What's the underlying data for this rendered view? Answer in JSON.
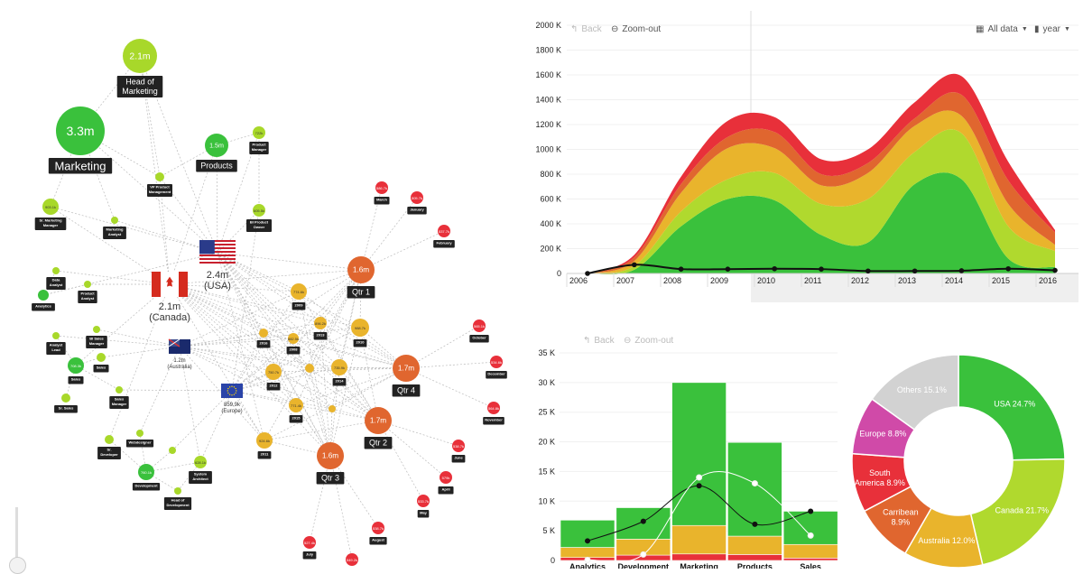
{
  "network": {
    "colors": {
      "green": "#3ac13c",
      "lime": "#a8d82a",
      "yellow": "#e9b42c",
      "orange": "#e0662f",
      "red": "#e8303a"
    },
    "nodes": [
      {
        "id": "head",
        "value": "2.1m",
        "label": [
          "Head of",
          "Marketing"
        ],
        "color": "lime"
      },
      {
        "id": "marketing",
        "value": "3.3m",
        "label": [
          "Marketing"
        ],
        "color": "green"
      },
      {
        "id": "products",
        "value": "1.5m",
        "label": [
          "Products"
        ],
        "color": "green"
      },
      {
        "id": "pm",
        "value": "722k",
        "label": [
          "Product",
          "Manager"
        ],
        "color": "lime"
      },
      {
        "id": "vp",
        "value": "665.9k",
        "label": [
          "VP Product",
          "Management"
        ],
        "color": "lime"
      },
      {
        "id": "srmm",
        "value": "903.1k",
        "label": [
          "Sr. Marketing",
          "Manager"
        ],
        "color": "lime"
      },
      {
        "id": "mkt2",
        "value": "",
        "label": [
          "Marketing",
          "Analyst"
        ],
        "color": "lime"
      },
      {
        "id": "bipo",
        "value": "605.5k",
        "label": [
          "BI Product",
          "Owner"
        ],
        "color": "lime"
      },
      {
        "id": "analytics",
        "value": "",
        "label": [
          "Analytics"
        ],
        "color": "green"
      },
      {
        "id": "an1",
        "value": "",
        "label": [
          "Data",
          "Analyst"
        ],
        "color": "lime"
      },
      {
        "id": "an2",
        "value": "",
        "label": [
          "Product",
          "Analyst"
        ],
        "color": "lime"
      },
      {
        "id": "an3",
        "value": "",
        "label": [
          "Analyst",
          "Lead"
        ],
        "color": "lime"
      },
      {
        "id": "an4",
        "value": "",
        "label": [
          "BI Sales",
          "Manager"
        ],
        "color": "lime"
      },
      {
        "id": "sales",
        "value": "708.3k",
        "label": [
          "Sales"
        ],
        "color": "green"
      },
      {
        "id": "sales2",
        "value": "",
        "label": [
          "Sales"
        ],
        "color": "lime"
      },
      {
        "id": "srsales",
        "value": "",
        "label": [
          "Sr. Sales"
        ],
        "color": "lime"
      },
      {
        "id": "salesmgr",
        "value": "",
        "label": [
          "Sales",
          "Manager"
        ],
        "color": "lime"
      },
      {
        "id": "developer",
        "value": "",
        "label": [
          "Sr.",
          "Developer"
        ],
        "color": "lime"
      },
      {
        "id": "webdev",
        "value": "",
        "label": [
          "Webdesigner"
        ],
        "color": "lime"
      },
      {
        "id": "dev",
        "value": "760.1k",
        "label": [
          "Development"
        ],
        "color": "green"
      },
      {
        "id": "sysarch",
        "value": "628.1k",
        "label": [
          "System",
          "Architect"
        ],
        "color": "lime"
      },
      {
        "id": "headdev",
        "value": "",
        "label": [
          "Head of",
          "Development"
        ],
        "color": "lime"
      },
      {
        "id": "devsmall",
        "value": "",
        "label": [],
        "color": "lime"
      },
      {
        "id": "qtr1",
        "value": "1.6m",
        "label": [
          "Qtr 1"
        ],
        "color": "orange"
      },
      {
        "id": "qtr4",
        "value": "1.7m",
        "label": [
          "Qtr 4"
        ],
        "color": "orange"
      },
      {
        "id": "qtr2",
        "value": "1.7m",
        "label": [
          "Qtr 2"
        ],
        "color": "orange"
      },
      {
        "id": "qtr3",
        "value": "1.6m",
        "label": [
          "Qtr 3"
        ],
        "color": "orange"
      },
      {
        "id": "y2009",
        "value": "774.6k",
        "label": [
          "2009"
        ],
        "color": "yellow"
      },
      {
        "id": "y2013",
        "value": "896.2k",
        "label": [
          "2013"
        ],
        "color": "yellow"
      },
      {
        "id": "y2010",
        "value": "988.7k",
        "label": [
          "2010"
        ],
        "color": "yellow"
      },
      {
        "id": "y2016",
        "value": "327.8k",
        "label": [
          "2016"
        ],
        "color": "yellow"
      },
      {
        "id": "y2008",
        "value": "882.5k",
        "label": [
          "2008"
        ],
        "color": "yellow"
      },
      {
        "id": "y2012",
        "value": "750.7k",
        "label": [
          "2012"
        ],
        "color": "yellow"
      },
      {
        "id": "y2014",
        "value": "735.9k",
        "label": [
          "2014"
        ],
        "color": "yellow"
      },
      {
        "id": "y2015",
        "value": "771.4k",
        "label": [
          "2015"
        ],
        "color": "yellow"
      },
      {
        "id": "y2011",
        "value": "924.6k",
        "label": [
          "2011"
        ],
        "color": "yellow"
      },
      {
        "id": "ysmall1",
        "value": "",
        "label": [],
        "color": "yellow"
      },
      {
        "id": "ysmall2",
        "value": "",
        "label": [],
        "color": "yellow"
      },
      {
        "id": "march",
        "value": "586.7k",
        "label": [
          "March"
        ],
        "color": "red"
      },
      {
        "id": "january",
        "value": "505.7k",
        "label": [
          "January"
        ],
        "color": "red"
      },
      {
        "id": "february",
        "value": "537.7k",
        "label": [
          "February"
        ],
        "color": "red"
      },
      {
        "id": "october",
        "value": "565.1k",
        "label": [
          "October"
        ],
        "color": "red"
      },
      {
        "id": "december",
        "value": "534.6k",
        "label": [
          "December"
        ],
        "color": "red"
      },
      {
        "id": "november",
        "value": "564.8k",
        "label": [
          "November"
        ],
        "color": "red"
      },
      {
        "id": "june",
        "value": "538.7k",
        "label": [
          "June"
        ],
        "color": "red"
      },
      {
        "id": "april",
        "value": "579k",
        "label": [
          "April"
        ],
        "color": "red"
      },
      {
        "id": "may",
        "value": "533.7k",
        "label": [
          "May"
        ],
        "color": "red"
      },
      {
        "id": "august",
        "value": "538.7k",
        "label": [
          "August"
        ],
        "color": "red"
      },
      {
        "id": "july",
        "value": "527.4k",
        "label": [
          "July"
        ],
        "color": "red"
      },
      {
        "id": "september",
        "value": "549.2k",
        "label": [
          "September"
        ],
        "color": "red"
      }
    ],
    "countries": [
      {
        "id": "usa",
        "value": "2.4m",
        "name": "(USA)",
        "flag": "usa"
      },
      {
        "id": "canada",
        "value": "2.1m",
        "name": "(Canada)",
        "flag": "canada"
      },
      {
        "id": "australia",
        "value": "1.2m",
        "name": "(Australia)",
        "flag": "australia"
      },
      {
        "id": "europe",
        "value": "859.9k",
        "name": "(Europe)",
        "flag": "europe"
      }
    ]
  },
  "area_controls": {
    "back": "Back",
    "zoom_out": "Zoom-out",
    "range": "All data",
    "period": "year"
  },
  "bar_controls": {
    "back": "Back",
    "zoom_out": "Zoom-out"
  },
  "chart_data": [
    {
      "type": "area",
      "title": "",
      "x": [
        2006,
        2007,
        2008,
        2009,
        2010,
        2011,
        2012,
        2013,
        2014,
        2015,
        2016
      ],
      "x_tick_labels": [
        "2006",
        "2007",
        "2008",
        "2009",
        "2010",
        "2011",
        "2012",
        "2013",
        "2014",
        "2015",
        "2016"
      ],
      "y_tick_labels": [
        "0",
        "200 K",
        "400 K",
        "600 K",
        "800 K",
        "1000 K",
        "1200 K",
        "1400 K",
        "1600 K",
        "1800 K",
        "2000 K"
      ],
      "ylim": [
        0,
        2000000
      ],
      "stacked": true,
      "series": [
        {
          "name": "green",
          "color": "#3ac13c",
          "values": [
            0,
            30000,
            380000,
            600000,
            590000,
            310000,
            250000,
            720000,
            760000,
            120000,
            50000
          ]
        },
        {
          "name": "lime",
          "color": "#b0d92e",
          "values": [
            0,
            30000,
            120000,
            160000,
            220000,
            250000,
            350000,
            260000,
            370000,
            260000,
            130000
          ]
        },
        {
          "name": "yellow",
          "color": "#e9b42c",
          "values": [
            0,
            40000,
            150000,
            250000,
            200000,
            150000,
            210000,
            210000,
            140000,
            180000,
            50000
          ]
        },
        {
          "name": "orange",
          "color": "#e0662f",
          "values": [
            0,
            30000,
            70000,
            90000,
            130000,
            90000,
            80000,
            60000,
            170000,
            190000,
            100000
          ]
        },
        {
          "name": "red",
          "color": "#e8303a",
          "values": [
            0,
            20000,
            60000,
            130000,
            120000,
            120000,
            110000,
            130000,
            150000,
            150000,
            20000
          ]
        }
      ],
      "line": {
        "name": "black",
        "color": "#111111",
        "values": [
          0,
          70000,
          35000,
          35000,
          38000,
          35000,
          20000,
          20000,
          22000,
          38000,
          25000
        ]
      }
    },
    {
      "type": "bar",
      "categories": [
        "Analytics",
        "Development",
        "Marketing",
        "Products",
        "Sales"
      ],
      "y_tick_labels": [
        "0",
        "5 K",
        "10 K",
        "15 K",
        "20 K",
        "25 K",
        "30 K",
        "35 K"
      ],
      "ylim": [
        0,
        35000
      ],
      "stacked": true,
      "series": [
        {
          "name": "red",
          "color": "#e8303a",
          "values": [
            500,
            900,
            1100,
            1000,
            400
          ]
        },
        {
          "name": "yellow",
          "color": "#e9b42c",
          "values": [
            1700,
            2700,
            4800,
            3100,
            2300
          ]
        },
        {
          "name": "green",
          "color": "#3ac13c",
          "values": [
            4600,
            5300,
            24100,
            15800,
            5600
          ]
        }
      ],
      "lines": [
        {
          "name": "black",
          "color": "#111111",
          "values": [
            3300,
            6600,
            12600,
            6100,
            8300
          ]
        },
        {
          "name": "white",
          "color": "#ffffff",
          "values": [
            100,
            1000,
            14000,
            13000,
            4200
          ]
        }
      ]
    },
    {
      "type": "pie",
      "donut": true,
      "slices": [
        {
          "label": [
            "USA 24.7%"
          ],
          "value": 24.7,
          "color": "#3ac13c"
        },
        {
          "label": [
            "Canada 21.7%"
          ],
          "value": 21.7,
          "color": "#b0d92e"
        },
        {
          "label": [
            "Australia 12.0%"
          ],
          "value": 12.0,
          "color": "#e9b42c"
        },
        {
          "label": [
            "Carribean",
            "8.9%"
          ],
          "value": 8.9,
          "color": "#e0662f"
        },
        {
          "label": [
            "South",
            "America 8.9%"
          ],
          "value": 8.9,
          "color": "#e8303a"
        },
        {
          "label": [
            "Europe 8.8%"
          ],
          "value": 8.8,
          "color": "#d04aa8"
        },
        {
          "label": [
            "Others 15.1%"
          ],
          "value": 15.1,
          "color": "#d2d2d2"
        }
      ]
    }
  ]
}
